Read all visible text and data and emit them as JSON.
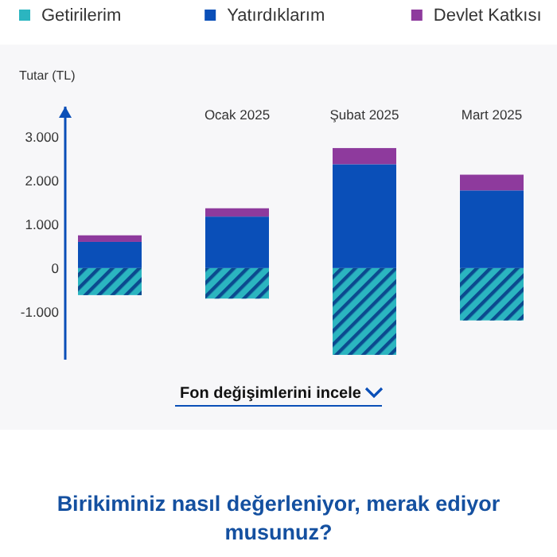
{
  "chart_data": {
    "type": "bar",
    "stacked": true,
    "ylabel": "Tutar (TL)",
    "categories": [
      null,
      "Ocak 2025",
      "Şubat 2025",
      "Mart 2025"
    ],
    "series": [
      {
        "name": "Getirilerim",
        "color": "#2bb5c0",
        "values": [
          -620,
          -700,
          -1990,
          -1200
        ]
      },
      {
        "name": "Yatırdıklarım",
        "color": "#0a4fb8",
        "values": [
          600,
          1180,
          2380,
          1780
        ]
      },
      {
        "name": "Devlet Katkısı",
        "color": "#8e3a9d",
        "values": [
          150,
          190,
          370,
          360
        ]
      }
    ],
    "ylim": [
      -2100,
      3700
    ],
    "yticks": [
      {
        "value": -1000,
        "label": "-1.000"
      },
      0,
      {
        "value": 1000,
        "label": "1.000"
      },
      {
        "value": 2000,
        "label": "2.000"
      },
      {
        "value": 3000,
        "label": "3.000"
      }
    ],
    "legend": "top",
    "grid": false,
    "annotations": [
      "Fon değişimlerini incele",
      "Birikiminiz nasıl değerleniyor, merak ediyor musunuz?"
    ]
  }
}
